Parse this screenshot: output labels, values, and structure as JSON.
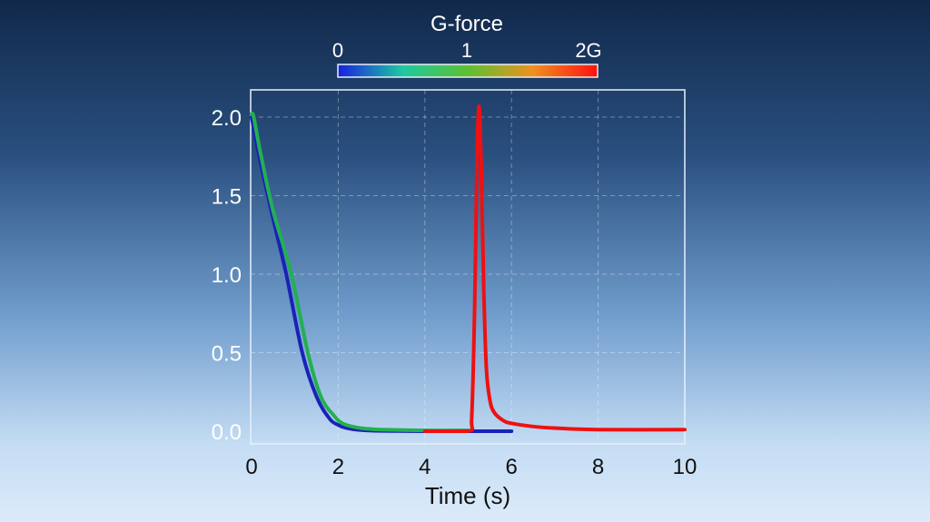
{
  "chart_data": {
    "type": "line",
    "title": "",
    "xlabel": "Time (s)",
    "ylabel": "",
    "xlim": [
      0,
      10
    ],
    "ylim": [
      -0.08,
      2.17
    ],
    "xticks": [
      0,
      2,
      4,
      6,
      8,
      10
    ],
    "xtick_labels": [
      "0",
      "2",
      "4",
      "6",
      "8",
      "10"
    ],
    "yticks": [
      0,
      0.5,
      1.0,
      1.5,
      2.0
    ],
    "ytick_labels": [
      "0.0",
      "0.5",
      "1.0",
      "1.5",
      "2.0"
    ],
    "grid": true,
    "colorbar": {
      "title": "G-force",
      "tick_labels": [
        "0",
        "1",
        "2G"
      ],
      "range": [
        0,
        2
      ],
      "colors": [
        "#1a20e0",
        "#1ec8a0",
        "#5cc030",
        "#f09020",
        "#ff1010"
      ]
    },
    "series": [
      {
        "color": "#1a22b8",
        "x": [
          0,
          0.2,
          0.5,
          0.8,
          1.17,
          1.5,
          1.8,
          2.0,
          2.2,
          2.5,
          3.0,
          4.0,
          5.0,
          6.0
        ],
        "y": [
          2.0,
          1.72,
          1.35,
          1.0,
          0.5,
          0.22,
          0.08,
          0.04,
          0.02,
          0.008,
          0.002,
          0,
          0,
          0
        ]
      },
      {
        "color": "#22b050",
        "x": [
          0,
          0.05,
          0.2,
          0.5,
          0.92,
          1.3,
          1.6,
          1.9,
          2.1,
          2.4,
          2.7,
          3.0,
          4.0,
          5.0
        ],
        "y": [
          2.02,
          2.0,
          1.78,
          1.4,
          1.0,
          0.5,
          0.22,
          0.1,
          0.05,
          0.025,
          0.015,
          0.01,
          0.005,
          0.005
        ]
      },
      {
        "color": "#ee1111",
        "x": [
          4.0,
          5.0,
          5.08,
          5.15,
          5.2,
          5.25,
          5.3,
          5.36,
          5.42,
          5.5,
          5.6,
          5.8,
          6.0,
          6.5,
          7.0,
          8.0,
          10.0
        ],
        "y": [
          0,
          0,
          0.08,
          0.8,
          1.7,
          2.07,
          1.7,
          0.9,
          0.4,
          0.2,
          0.12,
          0.07,
          0.05,
          0.03,
          0.02,
          0.01,
          0.01
        ]
      }
    ]
  }
}
